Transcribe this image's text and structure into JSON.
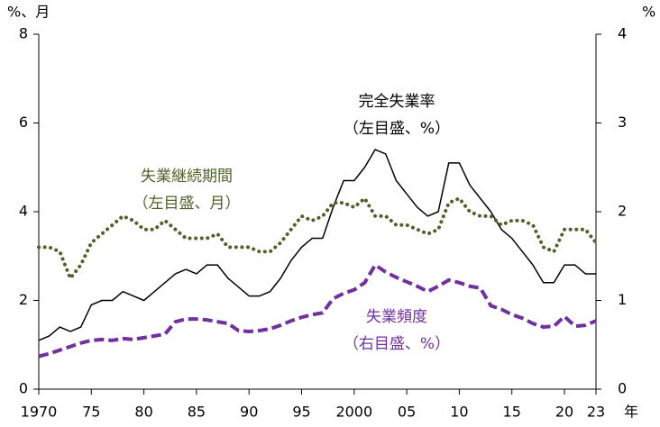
{
  "chart_data": {
    "type": "line",
    "ylabel": "%、月",
    "y2label": "%",
    "xlabel": "年",
    "x": [
      1970,
      1971,
      1972,
      1973,
      1974,
      1975,
      1976,
      1977,
      1978,
      1979,
      1980,
      1981,
      1982,
      1983,
      1984,
      1985,
      1986,
      1987,
      1988,
      1989,
      1990,
      1991,
      1992,
      1993,
      1994,
      1995,
      1996,
      1997,
      1998,
      1999,
      2000,
      2001,
      2002,
      2003,
      2004,
      2005,
      2006,
      2007,
      2008,
      2009,
      2010,
      2011,
      2012,
      2013,
      2014,
      2015,
      2016,
      2017,
      2018,
      2019,
      2020,
      2021,
      2022,
      2023
    ],
    "xlim": [
      1970,
      2023
    ],
    "xticks": [
      1970,
      {
        "value": 1975,
        "label": "75"
      },
      {
        "value": 1980,
        "label": "80"
      },
      {
        "value": 1985,
        "label": "85"
      },
      {
        "value": 1990,
        "label": "90"
      },
      {
        "value": 1995,
        "label": "95"
      },
      2000,
      {
        "value": 2005,
        "label": "05"
      },
      {
        "value": 2010,
        "label": "10"
      },
      {
        "value": 2015,
        "label": "15"
      },
      {
        "value": 2020,
        "label": "20"
      },
      {
        "value": 2023,
        "label": "23"
      }
    ],
    "ylim": [
      0,
      8
    ],
    "yticks": [
      0,
      2,
      4,
      6,
      8
    ],
    "y2lim": [
      0,
      4
    ],
    "y2ticks": [
      0,
      1,
      2,
      3,
      4
    ],
    "series": [
      {
        "name": "完全失業率",
        "note": "（左目盛、%）",
        "color": "#000000",
        "style": "solid",
        "values": [
          1.1,
          1.2,
          1.4,
          1.3,
          1.4,
          1.9,
          2.0,
          2.0,
          2.2,
          2.1,
          2.0,
          2.2,
          2.4,
          2.6,
          2.7,
          2.6,
          2.8,
          2.8,
          2.5,
          2.3,
          2.1,
          2.1,
          2.2,
          2.5,
          2.9,
          3.2,
          3.4,
          3.4,
          4.1,
          4.7,
          4.7,
          5.0,
          5.4,
          5.3,
          4.7,
          4.4,
          4.1,
          3.9,
          4.0,
          5.1,
          5.1,
          4.6,
          4.3,
          4.0,
          3.6,
          3.4,
          3.1,
          2.8,
          2.4,
          2.4,
          2.8,
          2.8,
          2.6,
          2.6
        ]
      },
      {
        "name": "失業継続期間",
        "note": "（左目盛、月）",
        "color": "#4f6228",
        "style": "dotted",
        "values": [
          3.2,
          3.2,
          3.1,
          2.5,
          2.8,
          3.3,
          3.5,
          3.7,
          3.9,
          3.8,
          3.6,
          3.6,
          3.8,
          3.6,
          3.4,
          3.4,
          3.4,
          3.5,
          3.2,
          3.2,
          3.2,
          3.1,
          3.1,
          3.3,
          3.6,
          3.9,
          3.8,
          3.9,
          4.2,
          4.2,
          4.1,
          4.3,
          3.9,
          3.9,
          3.7,
          3.7,
          3.6,
          3.5,
          3.6,
          4.2,
          4.3,
          4.0,
          3.9,
          3.9,
          3.7,
          3.8,
          3.8,
          3.7,
          3.2,
          3.1,
          3.6,
          3.6,
          3.6,
          3.3
        ]
      },
      {
        "name": "失業頻度",
        "note": "（右目盛、%）",
        "color": "#7030a0",
        "style": "dashed",
        "axis": "y2",
        "values": [
          0.37,
          0.4,
          0.44,
          0.48,
          0.52,
          0.55,
          0.56,
          0.55,
          0.57,
          0.56,
          0.58,
          0.6,
          0.62,
          0.76,
          0.79,
          0.79,
          0.78,
          0.76,
          0.74,
          0.66,
          0.65,
          0.66,
          0.68,
          0.72,
          0.77,
          0.81,
          0.84,
          0.86,
          1.02,
          1.08,
          1.12,
          1.2,
          1.4,
          1.32,
          1.26,
          1.21,
          1.16,
          1.1,
          1.16,
          1.23,
          1.2,
          1.16,
          1.14,
          0.94,
          0.9,
          0.84,
          0.8,
          0.74,
          0.7,
          0.71,
          0.82,
          0.71,
          0.72,
          0.77
        ]
      }
    ]
  }
}
